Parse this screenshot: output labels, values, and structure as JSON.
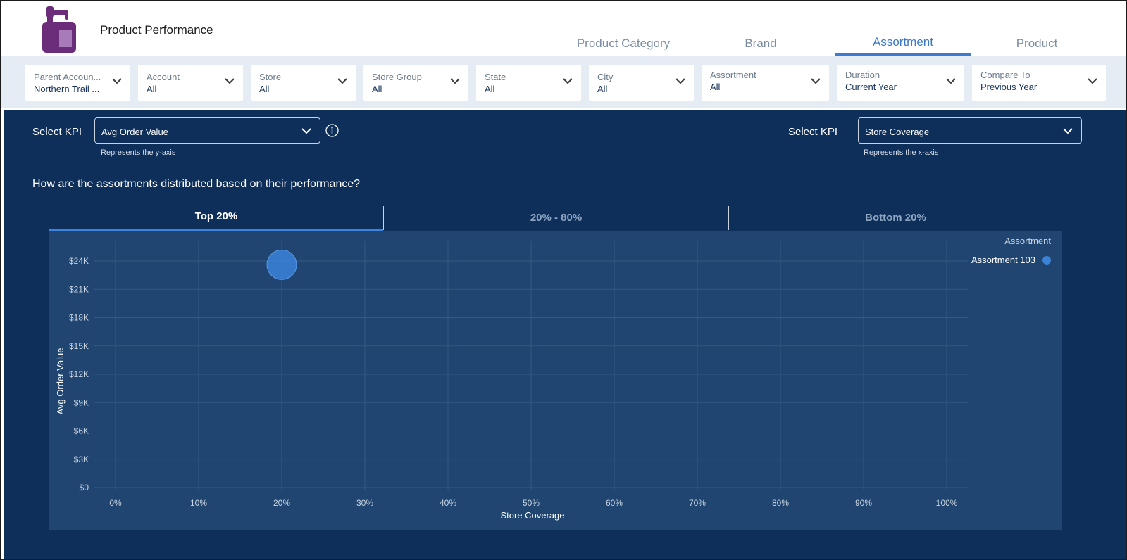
{
  "header": {
    "title": "Product Performance",
    "logo_icon": "spray-bottle-icon",
    "tabs": [
      {
        "label": "Product Category",
        "active": false
      },
      {
        "label": "Brand",
        "active": false
      },
      {
        "label": "Assortment",
        "active": true
      },
      {
        "label": "Product",
        "active": false
      }
    ]
  },
  "filters": [
    {
      "label": "Parent Accoun...",
      "value": "Northern Trail ..."
    },
    {
      "label": "Account",
      "value": "All"
    },
    {
      "label": "Store",
      "value": "All"
    },
    {
      "label": "Store Group",
      "value": "All"
    },
    {
      "label": "State",
      "value": "All"
    },
    {
      "label": "City",
      "value": "All"
    },
    {
      "label": "Assortment",
      "value": "All"
    },
    {
      "label": "Duration",
      "value": "Current Year"
    },
    {
      "label": "Compare To",
      "value": "Previous Year"
    }
  ],
  "kpi": {
    "y": {
      "label": "Select KPI",
      "value": "Avg Order Value",
      "hint": "Represents the y-axis"
    },
    "x": {
      "label": "Select KPI",
      "value": "Store Coverage",
      "hint": "Represents the x-axis"
    }
  },
  "question": "How are the assortments distributed based on their performance?",
  "range_tabs": [
    {
      "label": "Top 20%",
      "active": true
    },
    {
      "label": "20% - 80%",
      "active": false
    },
    {
      "label": "Bottom 20%",
      "active": false
    }
  ],
  "colors": {
    "accent": "#3d7bd0",
    "panel": "#0e2f5a",
    "chart_bg": "#1f4570",
    "point": "#3b82d9",
    "logo": "#6b2c7a"
  },
  "chart_data": {
    "type": "scatter",
    "xlabel": "Store Coverage",
    "ylabel": "Avg Order Value",
    "xlim": [
      0,
      100
    ],
    "ylim": [
      0,
      24000
    ],
    "x_ticks": [
      "0%",
      "10%",
      "20%",
      "30%",
      "40%",
      "50%",
      "60%",
      "70%",
      "80%",
      "90%",
      "100%"
    ],
    "y_ticks": [
      "$0",
      "$3K",
      "$6K",
      "$9K",
      "$12K",
      "$15K",
      "$18K",
      "$21K",
      "$24K"
    ],
    "grid": true,
    "legend_title": "Assortment",
    "legend_position": "top-right",
    "series": [
      {
        "name": "Assortment 103",
        "points": [
          {
            "x": 20,
            "y": 23600
          }
        ]
      }
    ]
  }
}
